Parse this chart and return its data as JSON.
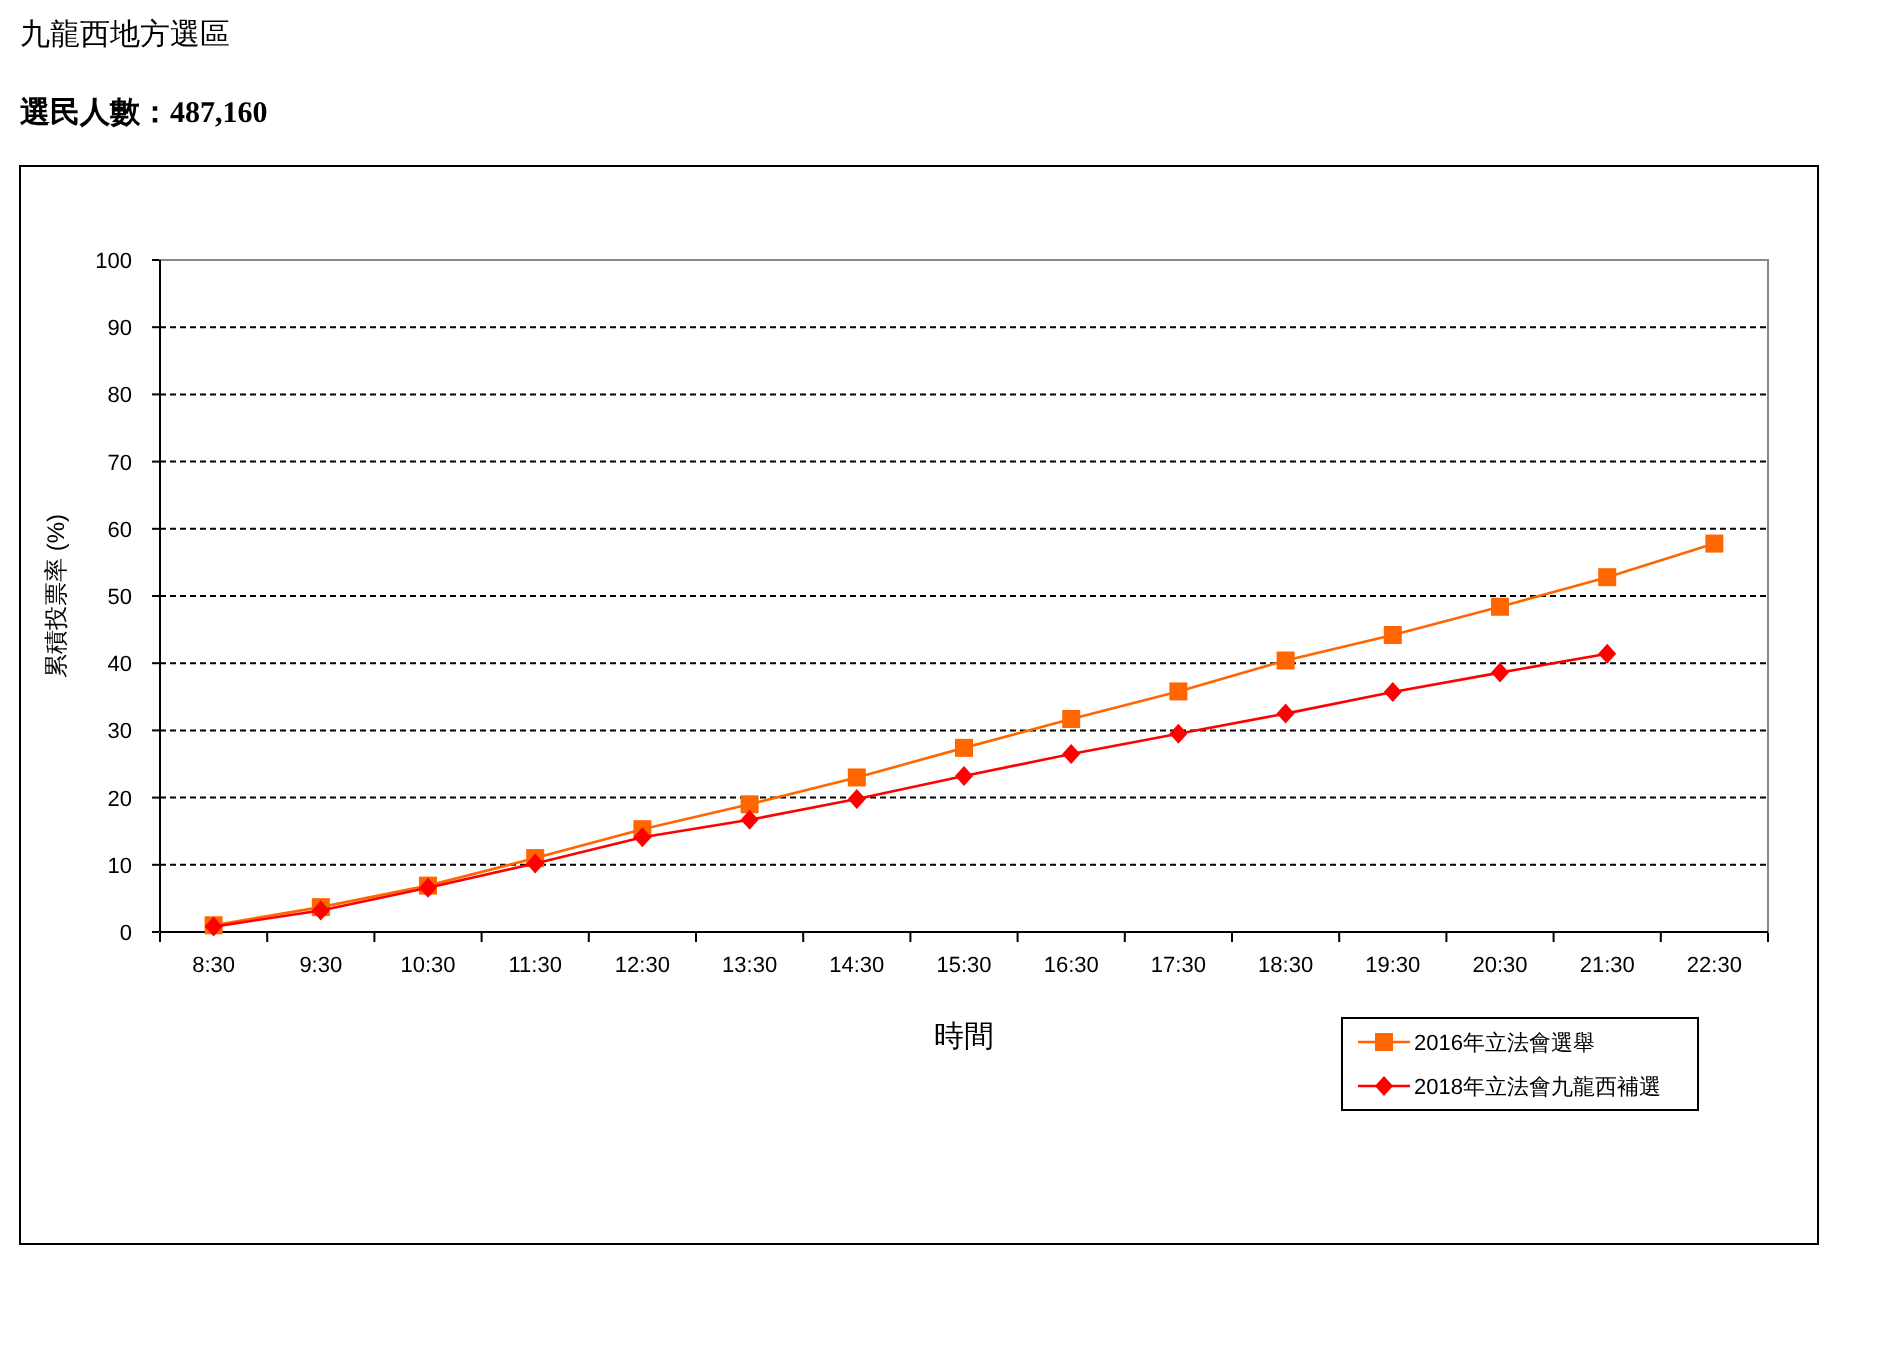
{
  "chart_data": {
    "type": "line",
    "title": "九龍西地方選區",
    "subtitle": "選民人數：487,160",
    "xlabel": "時間",
    "ylabel": "累積投票率 (%)",
    "categories": [
      "8:30",
      "9:30",
      "10:30",
      "11:30",
      "12:30",
      "13:30",
      "14:30",
      "15:30",
      "16:30",
      "17:30",
      "18:30",
      "19:30",
      "20:30",
      "21:30",
      "22:30"
    ],
    "series": [
      {
        "name": "2016年立法會選舉",
        "color": "#ff6600",
        "marker": "square",
        "values": [
          1.0,
          3.7,
          6.9,
          11.0,
          15.3,
          19.0,
          23.0,
          27.4,
          31.7,
          35.8,
          40.4,
          44.2,
          48.4,
          52.8,
          57.8
        ]
      },
      {
        "name": "2018年立法會九龍西補選",
        "color": "#ff0000",
        "marker": "diamond",
        "values": [
          0.8,
          3.2,
          6.6,
          10.2,
          14.1,
          16.7,
          19.8,
          23.2,
          26.5,
          29.5,
          32.5,
          35.7,
          38.6,
          41.4,
          null
        ]
      }
    ],
    "ylim": [
      0,
      100
    ],
    "yticks": [
      0,
      10,
      20,
      30,
      40,
      50,
      60,
      70,
      80,
      90,
      100
    ],
    "grid": "y",
    "line_style": "solid",
    "legend": "bottom right"
  }
}
